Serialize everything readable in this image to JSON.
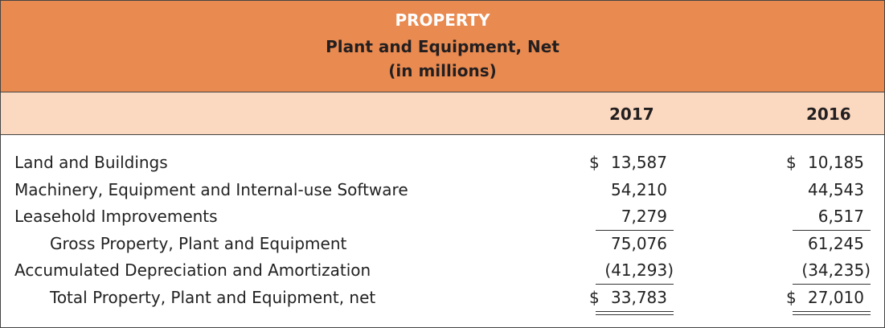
{
  "header": {
    "title": "PROPERTY",
    "subtitle": "Plant and Equipment, Net",
    "units": "(in millions)"
  },
  "columns": [
    "2017",
    "2016"
  ],
  "colors": {
    "header_bg": "#E98A50",
    "subheader_bg": "#FBD9C0",
    "title_text": "#FFFFFF"
  },
  "rows": [
    {
      "label": "Land and Buildings",
      "indent": false,
      "v2017": {
        "dollar": "$",
        "value": "13,587"
      },
      "v2016": {
        "dollar": "$",
        "value": "10,185"
      }
    },
    {
      "label": "Machinery, Equipment and Internal-use Software",
      "indent": false,
      "v2017": {
        "dollar": "",
        "value": "54,210"
      },
      "v2016": {
        "dollar": "",
        "value": "44,543"
      }
    },
    {
      "label": "Leasehold Improvements",
      "indent": false,
      "v2017": {
        "dollar": "",
        "value": "7,279"
      },
      "v2016": {
        "dollar": "",
        "value": "6,517"
      }
    },
    {
      "label": "Gross Property, Plant and Equipment",
      "indent": true,
      "v2017": {
        "dollar": "",
        "value": "75,076"
      },
      "v2016": {
        "dollar": "",
        "value": "61,245"
      }
    },
    {
      "label": "Accumulated Depreciation and Amortization",
      "indent": false,
      "v2017": {
        "dollar": "",
        "value": "(41,293)"
      },
      "v2016": {
        "dollar": "",
        "value": "(34,235)"
      }
    },
    {
      "label": "Total Property, Plant and Equipment, net",
      "indent": true,
      "v2017": {
        "dollar": "$",
        "value": "33,783"
      },
      "v2016": {
        "dollar": "$",
        "value": "27,010"
      }
    }
  ]
}
